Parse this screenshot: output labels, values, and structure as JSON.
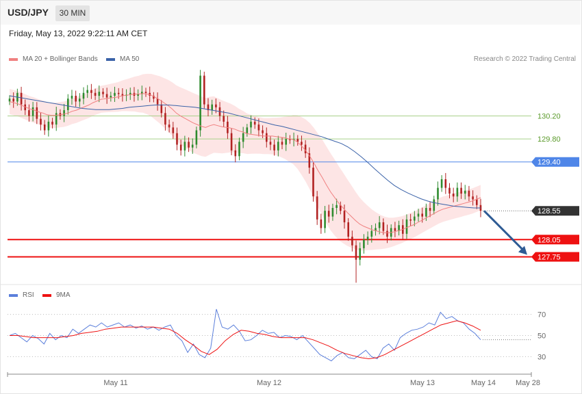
{
  "header": {
    "symbol": "USD/JPY",
    "timeframe": "30 MIN",
    "timestamp": "Friday, May 13, 2022 9:22:11 AM CET"
  },
  "legend": {
    "ma20_label": "MA 20 + Bollinger Bands",
    "ma50_label": "MA 50",
    "credit": "Research © 2022 Trading Central",
    "rsi_label": "RSI",
    "ma9_label": "9MA"
  },
  "colors": {
    "bull": "#2e8b2e",
    "bear": "#b22222",
    "ma20": "#f08080",
    "band_fill": "#fde2e2",
    "ma50": "#3a62a8",
    "support": "#ee1111",
    "resistance_green": "#a8d08a",
    "pivot_blue": "#4f86e8",
    "current": "#333333",
    "arrow": "#2e5b94",
    "rsi": "#5b7fdb",
    "rsi_ma": "#ee1111"
  },
  "chart_data": [
    {
      "type": "candlestick",
      "title": "USD/JPY",
      "timeframe": "30 MIN",
      "ylim": [
        127.28,
        131.05
      ],
      "x_ticks": [
        "May 11",
        "May 12",
        "May 13",
        "May 14",
        "May 28"
      ],
      "levels": [
        {
          "value": 130.2,
          "label": "130.20",
          "kind": "resistance"
        },
        {
          "value": 129.8,
          "label": "129.80",
          "kind": "resistance"
        },
        {
          "value": 129.4,
          "label": "129.40",
          "kind": "pivot"
        },
        {
          "value": 128.55,
          "label": "128.55",
          "kind": "current"
        },
        {
          "value": 128.05,
          "label": "128.05",
          "kind": "support"
        },
        {
          "value": 127.75,
          "label": "127.75",
          "kind": "support"
        }
      ],
      "projection": {
        "from": 128.55,
        "to": 127.75
      },
      "closes": [
        130.5,
        130.45,
        130.6,
        130.4,
        130.3,
        130.2,
        130.35,
        130.15,
        130.05,
        129.95,
        130.1,
        130.05,
        130.25,
        130.2,
        130.3,
        130.5,
        130.55,
        130.45,
        130.5,
        130.6,
        130.65,
        130.6,
        130.55,
        130.62,
        130.58,
        130.52,
        130.55,
        130.6,
        130.58,
        130.55,
        130.57,
        130.6,
        130.55,
        130.58,
        130.62,
        130.6,
        130.55,
        130.5,
        130.4,
        130.25,
        130.05,
        130.0,
        129.9,
        129.7,
        129.6,
        129.75,
        129.65,
        129.7,
        129.95,
        130.9,
        130.4,
        130.3,
        130.4,
        130.35,
        130.2,
        130.1,
        129.9,
        129.6,
        129.5,
        129.75,
        129.9,
        130.0,
        130.1,
        130.05,
        129.95,
        129.9,
        129.75,
        129.7,
        129.6,
        129.75,
        129.7,
        129.8,
        129.78,
        129.8,
        129.75,
        129.7,
        129.55,
        129.3,
        128.8,
        128.4,
        128.25,
        128.55,
        128.45,
        128.6,
        128.65,
        128.55,
        128.35,
        128.1,
        127.95,
        127.7,
        127.9,
        128.05,
        128.1,
        128.2,
        128.25,
        128.35,
        128.2,
        128.1,
        128.25,
        128.2,
        128.3,
        128.15,
        128.4,
        128.38,
        128.45,
        128.5,
        128.45,
        128.6,
        128.55,
        128.75,
        128.95,
        129.1,
        128.95,
        128.85,
        128.8,
        128.95,
        128.85,
        128.9,
        128.8,
        128.75,
        128.65,
        128.55
      ],
      "ma20": [
        130.45,
        130.43,
        130.41,
        130.38,
        130.35,
        130.32,
        130.3,
        130.27,
        130.25,
        130.22,
        130.21,
        130.21,
        130.22,
        130.23,
        130.25,
        130.28,
        130.3,
        130.33,
        130.36,
        130.39,
        130.43,
        130.46,
        130.49,
        130.5,
        130.51,
        130.52,
        130.53,
        130.55,
        130.56,
        130.57,
        130.58,
        130.58,
        130.59,
        130.58,
        130.56,
        130.52,
        130.48,
        130.43,
        130.38,
        130.32,
        130.25,
        130.2,
        130.16,
        130.12,
        130.08,
        130.05,
        130.02,
        130.0,
        130.03,
        130.05,
        130.03,
        130.01,
        130.0,
        129.99,
        129.97,
        129.94,
        129.92,
        129.89,
        129.88,
        129.87,
        129.86,
        129.85,
        129.85,
        129.85,
        129.84,
        129.83,
        129.82,
        129.8,
        129.79,
        129.75,
        129.68,
        129.6,
        129.5,
        129.38,
        129.25,
        129.13,
        129.0,
        128.88,
        128.78,
        128.68,
        128.6,
        128.52,
        128.45,
        128.38,
        128.32,
        128.28,
        128.25,
        128.22,
        128.2,
        128.18,
        128.17,
        128.17,
        128.18,
        128.2,
        128.22,
        128.25,
        128.28,
        128.31,
        128.35,
        128.39,
        128.43,
        128.47,
        128.51,
        128.55,
        128.58,
        128.6,
        128.62,
        128.64,
        128.66,
        128.68,
        128.7,
        128.72,
        128.75,
        128.78
      ],
      "ma50": [
        130.55,
        130.53,
        130.51,
        130.49,
        130.47,
        130.45,
        130.43,
        130.41,
        130.39,
        130.37,
        130.35,
        130.33,
        130.32,
        130.31,
        130.31,
        130.31,
        130.32,
        130.33,
        130.35,
        130.36,
        130.37,
        130.38,
        130.39,
        130.39,
        130.39,
        130.38,
        130.37,
        130.36,
        130.35,
        130.33,
        130.31,
        130.29,
        130.27,
        130.25,
        130.22,
        130.19,
        130.16,
        130.13,
        130.1,
        130.07,
        130.04,
        130.02,
        129.99,
        129.96,
        129.93,
        129.9,
        129.87,
        129.84,
        129.8,
        129.76,
        129.72,
        129.66,
        129.58,
        129.49,
        129.39,
        129.28,
        129.18,
        129.08,
        128.99,
        128.92,
        128.86,
        128.81,
        128.76,
        128.72,
        128.69,
        128.67,
        128.65,
        128.63,
        128.62,
        128.61,
        128.6,
        128.6
      ]
    },
    {
      "type": "line",
      "title": "RSI",
      "ylim": [
        16,
        84
      ],
      "y_ticks": [
        30,
        50,
        70
      ],
      "series": [
        {
          "name": "RSI",
          "values": [
            50,
            52,
            48,
            44,
            50,
            47,
            42,
            52,
            46,
            50,
            48,
            56,
            52,
            56,
            60,
            58,
            62,
            58,
            60,
            62,
            58,
            60,
            57,
            59,
            56,
            58,
            55,
            58,
            60,
            50,
            45,
            34,
            42,
            32,
            29,
            38,
            75,
            58,
            56,
            60,
            54,
            45,
            46,
            50,
            55,
            52,
            53,
            48,
            50,
            49,
            46,
            50,
            44,
            38,
            32,
            29,
            26,
            31,
            34,
            29,
            28,
            32,
            36,
            30,
            28,
            38,
            42,
            36,
            48,
            52,
            55,
            56,
            58,
            62,
            60,
            72,
            66,
            68,
            64,
            62,
            56,
            52,
            46
          ]
        },
        {
          "name": "9MA",
          "values": [
            50,
            50,
            49,
            48,
            48,
            48,
            48,
            49,
            50,
            52,
            53,
            54,
            56,
            57,
            58,
            58,
            58,
            58,
            58,
            57,
            56,
            52,
            46,
            41,
            35,
            32,
            37,
            45,
            51,
            55,
            54,
            52,
            51,
            49,
            48,
            48,
            48,
            48,
            46,
            43,
            40,
            36,
            33,
            31,
            29,
            28,
            29,
            32,
            36,
            40,
            44,
            48,
            52,
            56,
            60,
            62,
            64,
            62,
            59,
            55
          ]
        }
      ]
    }
  ]
}
